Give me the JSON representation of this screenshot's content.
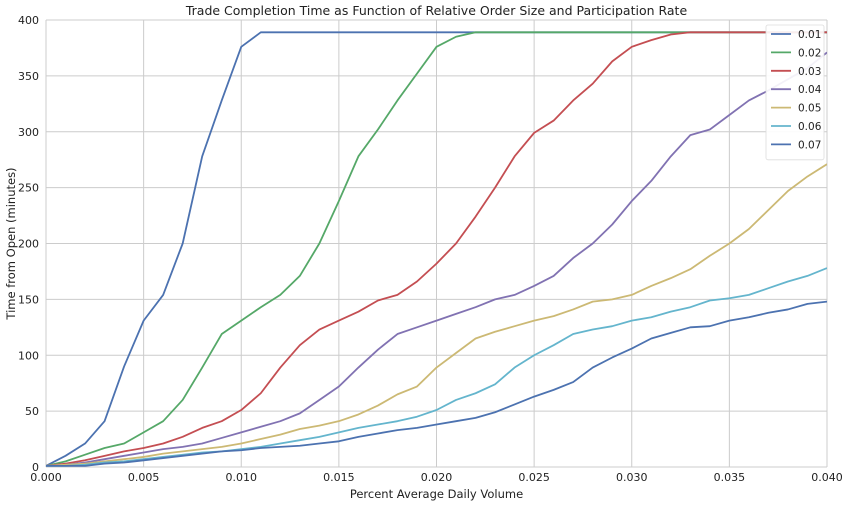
{
  "chart_data": {
    "type": "line",
    "title": "Trade Completion Time as Function of Relative Order Size and Participation Rate",
    "xlabel": "Percent Average Daily Volume",
    "ylabel": "Time from Open (minutes)",
    "xlim": [
      0.0,
      0.04
    ],
    "ylim": [
      0,
      400
    ],
    "xticks": [
      0.0,
      0.005,
      0.01,
      0.015,
      0.02,
      0.025,
      0.03,
      0.035,
      0.04
    ],
    "xtick_labels": [
      "0.000",
      "0.005",
      "0.010",
      "0.015",
      "0.020",
      "0.025",
      "0.030",
      "0.035",
      "0.040"
    ],
    "yticks": [
      0,
      50,
      100,
      150,
      200,
      250,
      300,
      350,
      400
    ],
    "ytick_labels": [
      "0",
      "50",
      "100",
      "150",
      "200",
      "250",
      "300",
      "350",
      "400"
    ],
    "grid": true,
    "legend_position": "top-right",
    "x": [
      0.0,
      0.001,
      0.002,
      0.003,
      0.004,
      0.005,
      0.006,
      0.007,
      0.008,
      0.009,
      0.01,
      0.011,
      0.012,
      0.013,
      0.014,
      0.015,
      0.016,
      0.017,
      0.018,
      0.019,
      0.02,
      0.021,
      0.022,
      0.023,
      0.024,
      0.025,
      0.026,
      0.027,
      0.028,
      0.029,
      0.03,
      0.031,
      0.032,
      0.033,
      0.034,
      0.035,
      0.036,
      0.037,
      0.038,
      0.039,
      0.04
    ],
    "series": [
      {
        "name": "0.01",
        "color": "#4c72b0",
        "values": [
          1,
          10,
          21,
          41,
          90,
          131,
          154,
          200,
          278,
          328,
          376,
          389,
          389,
          389,
          389,
          389,
          389,
          389,
          389,
          389,
          389,
          389,
          389,
          389,
          389,
          389,
          389,
          389,
          389,
          389,
          389,
          389,
          389,
          389,
          389,
          389,
          389,
          389,
          389,
          389,
          389
        ]
      },
      {
        "name": "0.02",
        "color": "#55a868",
        "values": [
          1,
          5,
          11,
          17,
          21,
          31,
          41,
          60,
          89,
          119,
          131,
          143,
          154,
          171,
          200,
          238,
          278,
          302,
          328,
          352,
          376,
          385,
          389,
          389,
          389,
          389,
          389,
          389,
          389,
          389,
          389,
          389,
          389,
          389,
          389,
          389,
          389,
          389,
          389,
          389,
          389
        ]
      },
      {
        "name": "0.03",
        "color": "#c44e52",
        "values": [
          1,
          3,
          6,
          10,
          14,
          17,
          21,
          27,
          35,
          41,
          51,
          66,
          89,
          109,
          123,
          131,
          139,
          149,
          154,
          166,
          182,
          200,
          224,
          250,
          278,
          299,
          310,
          328,
          343,
          363,
          376,
          382,
          387,
          389,
          389,
          389,
          389,
          389,
          389,
          389,
          389
        ]
      },
      {
        "name": "0.04",
        "color": "#8172b2",
        "values": [
          1,
          2,
          4,
          7,
          10,
          13,
          16,
          18,
          21,
          26,
          31,
          36,
          41,
          48,
          60,
          72,
          89,
          105,
          119,
          125,
          131,
          137,
          143,
          150,
          154,
          162,
          171,
          187,
          200,
          217,
          238,
          256,
          278,
          297,
          302,
          315,
          328,
          337,
          347,
          357,
          371
        ]
      },
      {
        "name": "0.05",
        "color": "#ccb974",
        "values": [
          1,
          2,
          3,
          5,
          7,
          9,
          12,
          14,
          16,
          18,
          21,
          25,
          29,
          34,
          37,
          41,
          47,
          55,
          65,
          72,
          89,
          102,
          115,
          121,
          126,
          131,
          135,
          141,
          148,
          150,
          154,
          162,
          169,
          177,
          189,
          200,
          213,
          230,
          247,
          260,
          271
        ]
      },
      {
        "name": "0.06",
        "color": "#64b5cd",
        "values": [
          1,
          1,
          2,
          4,
          5,
          7,
          9,
          11,
          13,
          14,
          16,
          18,
          21,
          24,
          27,
          31,
          35,
          38,
          41,
          45,
          51,
          60,
          66,
          74,
          89,
          100,
          109,
          119,
          123,
          126,
          131,
          134,
          139,
          143,
          149,
          151,
          154,
          160,
          166,
          171,
          178
        ]
      },
      {
        "name": "0.07",
        "color": "#4c72b0",
        "values": [
          1,
          1,
          1,
          3,
          4,
          6,
          8,
          10,
          12,
          14,
          15,
          17,
          18,
          19,
          21,
          23,
          27,
          30,
          33,
          35,
          38,
          41,
          44,
          49,
          56,
          63,
          69,
          76,
          89,
          98,
          106,
          115,
          120,
          125,
          126,
          131,
          134,
          138,
          141,
          146,
          148
        ]
      }
    ]
  }
}
